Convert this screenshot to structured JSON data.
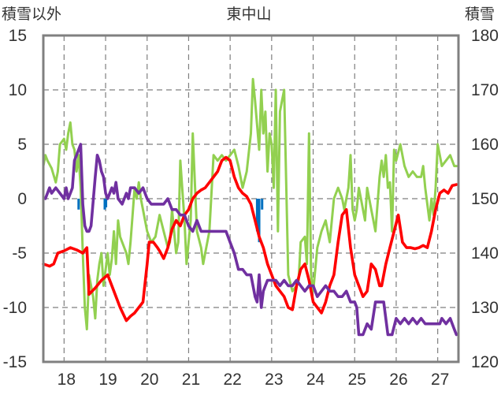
{
  "chart_data": {
    "type": "line",
    "title": "東中山",
    "left_axis_label": "積雪以外",
    "right_axis_label": "積雪",
    "left_ylim": [
      -15,
      15
    ],
    "right_ylim": [
      120,
      180
    ],
    "left_ticks": [
      "15",
      "10",
      "5",
      "0",
      "-5",
      "-10",
      "-15"
    ],
    "right_ticks": [
      "180",
      "170",
      "160",
      "150",
      "140",
      "130",
      "120"
    ],
    "x_categories": [
      "18",
      "19",
      "20",
      "21",
      "22",
      "23",
      "24",
      "25",
      "26",
      "27"
    ],
    "xlim": [
      17.5,
      27.5
    ],
    "grid": true,
    "series": [
      {
        "color": "#ff0000",
        "axis": "left",
        "x": [
          17.5,
          17.65,
          17.75,
          17.85,
          18.0,
          18.15,
          18.3,
          18.45,
          18.55,
          18.6,
          18.75,
          18.9,
          19.05,
          19.2,
          19.35,
          19.5,
          19.6,
          19.7,
          19.8,
          19.9,
          20.0,
          20.05,
          20.15,
          20.25,
          20.3,
          20.4,
          20.5,
          20.6,
          20.7,
          20.8,
          20.9,
          21.0,
          21.1,
          21.2,
          21.3,
          21.4,
          21.5,
          21.6,
          21.7,
          21.8,
          21.9,
          22.0,
          22.1,
          22.2,
          22.3,
          22.4,
          22.5,
          22.6,
          22.7,
          22.8,
          22.9,
          23.0,
          23.1,
          23.2,
          23.3,
          23.4,
          23.5,
          23.6,
          23.7,
          23.8,
          23.9,
          24.0,
          24.1,
          24.2,
          24.3,
          24.4,
          24.5,
          24.6,
          24.7,
          24.8,
          24.9,
          25.0,
          25.1,
          25.2,
          25.3,
          25.4,
          25.5,
          25.6,
          25.65,
          25.75,
          25.85,
          25.95,
          26.05,
          26.15,
          26.25,
          26.35,
          26.45,
          26.55,
          26.65,
          26.75,
          26.85,
          26.95,
          27.05,
          27.15,
          27.25,
          27.35,
          27.45
        ],
        "y": [
          -6.0,
          -6.2,
          -6.0,
          -5.0,
          -4.8,
          -4.5,
          -4.7,
          -5.0,
          -4.5,
          -8.8,
          -8.2,
          -7.5,
          -7.0,
          -8.5,
          -10.0,
          -11.2,
          -10.8,
          -10.5,
          -10.0,
          -9.5,
          -6.0,
          -4.0,
          -4.0,
          -4.5,
          -4.8,
          -5.5,
          -4.5,
          -2.8,
          -2.0,
          -2.5,
          -1.5,
          -1.0,
          0.0,
          0.5,
          0.8,
          1.0,
          1.5,
          2.0,
          2.5,
          3.5,
          3.8,
          3.5,
          2.0,
          1.0,
          0.5,
          0.2,
          -0.5,
          -2.0,
          -3.5,
          -4.5,
          -6.0,
          -7.0,
          -8.0,
          -8.5,
          -9.0,
          -10.0,
          -10.2,
          -8.0,
          -6.5,
          -6.0,
          -7.5,
          -9.5,
          -10.0,
          -10.5,
          -9.5,
          -8.0,
          -7.0,
          -4.0,
          -1.5,
          -1.0,
          -4.5,
          -7.0,
          -8.0,
          -9.0,
          -8.5,
          -6.0,
          -6.5,
          -8.0,
          -8.0,
          -6.0,
          -4.5,
          -3.0,
          -1.5,
          -4.0,
          -4.5,
          -4.5,
          -4.6,
          -4.5,
          -4.3,
          -4.5,
          -3.0,
          -1.0,
          0.5,
          0.8,
          0.5,
          1.2,
          1.3
        ]
      },
      {
        "color": "#92d050",
        "axis": "left",
        "x": [
          17.5,
          17.55,
          17.6,
          17.7,
          17.8,
          17.85,
          17.9,
          18.0,
          18.05,
          18.1,
          18.15,
          18.2,
          18.25,
          18.3,
          18.35,
          18.4,
          18.45,
          18.5,
          18.55,
          18.6,
          18.7,
          18.75,
          18.8,
          18.85,
          18.9,
          18.95,
          19.0,
          19.05,
          19.1,
          19.15,
          19.2,
          19.25,
          19.3,
          19.35,
          19.4,
          19.5,
          19.55,
          19.6,
          19.7,
          19.75,
          19.8,
          19.85,
          19.9,
          20.0,
          20.1,
          20.2,
          20.3,
          20.4,
          20.5,
          20.55,
          20.6,
          20.7,
          20.75,
          20.8,
          20.9,
          20.95,
          21.0,
          21.05,
          21.1,
          21.2,
          21.3,
          21.35,
          21.4,
          21.5,
          21.6,
          21.7,
          21.8,
          21.9,
          22.0,
          22.1,
          22.2,
          22.3,
          22.4,
          22.5,
          22.55,
          22.6,
          22.7,
          22.75,
          22.8,
          22.85,
          22.9,
          22.95,
          23.0,
          23.05,
          23.1,
          23.15,
          23.2,
          23.25,
          23.3,
          23.4,
          23.5,
          23.6,
          23.65,
          23.7,
          23.8,
          23.85,
          23.9,
          23.95,
          24.0,
          24.1,
          24.2,
          24.3,
          24.4,
          24.5,
          24.6,
          24.7,
          24.75,
          24.8,
          24.85,
          24.9,
          24.95,
          25.0,
          25.05,
          25.1,
          25.15,
          25.2,
          25.25,
          25.3,
          25.35,
          25.4,
          25.45,
          25.5,
          25.6,
          25.65,
          25.7,
          25.75,
          25.8,
          25.85,
          25.9,
          25.95,
          26.0,
          26.1,
          26.2,
          26.3,
          26.4,
          26.5,
          26.6,
          26.65,
          26.7,
          26.8,
          26.85,
          26.9,
          26.95,
          27.0,
          27.05,
          27.1,
          27.2,
          27.3,
          27.4,
          27.45
        ],
        "y": [
          3.0,
          4.0,
          3.5,
          2.8,
          1.5,
          2.5,
          5.0,
          5.5,
          4.5,
          6.0,
          7.0,
          5.0,
          4.5,
          2.5,
          4.0,
          1.0,
          -5.0,
          -10.0,
          -12.0,
          -7.0,
          -9.0,
          -11.0,
          -7.5,
          -6.0,
          -5.0,
          -8.0,
          -6.5,
          -5.0,
          -7.0,
          -5.5,
          -3.0,
          -6.0,
          -2.0,
          -3.5,
          -4.0,
          -5.0,
          -6.0,
          -4.0,
          1.0,
          0.0,
          1.5,
          0.0,
          -1.0,
          -3.0,
          -4.0,
          -3.5,
          -1.5,
          -3.0,
          -4.5,
          -4.0,
          -1.0,
          -5.0,
          -4.0,
          3.5,
          -2.0,
          -6.0,
          -4.0,
          -2.0,
          6.0,
          -3.0,
          -4.5,
          -6.0,
          -5.0,
          -3.0,
          4.0,
          3.5,
          4.0,
          3.5,
          4.0,
          4.5,
          3.0,
          1.0,
          2.5,
          6.0,
          11.0,
          9.0,
          4.5,
          10.0,
          6.0,
          8.0,
          2.5,
          6.0,
          5.0,
          1.0,
          10.0,
          -3.0,
          8.0,
          9.0,
          10.0,
          -7.0,
          -8.5,
          -8.0,
          -7.5,
          -4.0,
          -3.5,
          -6.0,
          6.0,
          -7.0,
          -8.5,
          -4.5,
          -3.0,
          -2.0,
          -4.0,
          0.0,
          1.0,
          0.0,
          -1.0,
          0.0,
          1.0,
          4.0,
          -1.0,
          -2.0,
          -1.0,
          1.0,
          0.0,
          -1.0,
          -2.0,
          1.0,
          0.0,
          -1.0,
          -2.0,
          -3.0,
          2.0,
          3.5,
          2.0,
          4.0,
          1.0,
          1.5,
          -3.0,
          4.5,
          3.5,
          5.0,
          3.0,
          2.0,
          2.5,
          2.0,
          2.0,
          3.0,
          1.0,
          -2.0,
          0.0,
          -1.5,
          1.0,
          5.0,
          4.0,
          3.0,
          3.5,
          4.0,
          3.0,
          3.0
        ]
      },
      {
        "color": "#7030a0",
        "axis": "right",
        "x": [
          17.55,
          17.65,
          17.7,
          17.8,
          17.9,
          18.0,
          18.05,
          18.1,
          18.15,
          18.2,
          18.25,
          18.3,
          18.35,
          18.4,
          18.45,
          18.5,
          18.55,
          18.6,
          18.65,
          18.75,
          18.8,
          18.85,
          18.9,
          18.95,
          19.0,
          19.05,
          19.1,
          19.15,
          19.2,
          19.25,
          19.3,
          19.4,
          19.5,
          19.55,
          19.6,
          19.7,
          19.8,
          19.9,
          20.0,
          20.1,
          20.2,
          20.3,
          20.4,
          20.5,
          20.6,
          20.7,
          20.8,
          20.9,
          21.0,
          21.1,
          21.2,
          21.3,
          21.4,
          21.5,
          21.6,
          21.7,
          21.8,
          21.9,
          22.0,
          22.1,
          22.2,
          22.3,
          22.4,
          22.5,
          22.6,
          22.65,
          22.7,
          22.75,
          22.8,
          22.85,
          22.9,
          23.0,
          23.1,
          23.2,
          23.3,
          23.4,
          23.5,
          23.6,
          23.7,
          23.8,
          23.9,
          24.0,
          24.1,
          24.2,
          24.3,
          24.4,
          24.5,
          24.6,
          24.7,
          24.8,
          24.9,
          25.0,
          25.05,
          25.1,
          25.2,
          25.3,
          25.4,
          25.5,
          25.6,
          25.7,
          25.8,
          25.9,
          26.0,
          26.1,
          26.2,
          26.3,
          26.4,
          26.5,
          26.6,
          26.7,
          26.8,
          26.9,
          27.0,
          27.05,
          27.1,
          27.2,
          27.3,
          27.35,
          27.4,
          27.45
        ],
        "y": [
          150,
          152,
          151,
          152,
          151,
          150,
          152,
          150,
          151,
          152,
          157,
          158,
          159,
          160,
          149,
          145,
          144,
          144,
          145,
          154,
          158,
          157,
          155,
          154,
          151,
          150,
          151,
          152,
          151,
          153,
          150,
          149,
          151,
          150,
          152,
          152,
          151,
          152,
          150,
          149,
          149,
          149,
          149,
          150,
          148,
          148,
          147,
          147,
          145,
          144,
          146,
          144,
          144,
          144,
          144,
          144,
          144,
          144,
          142,
          140,
          137,
          137,
          136,
          136,
          132,
          131,
          136,
          130,
          133,
          134,
          135,
          135,
          135,
          134,
          135,
          134,
          134,
          135,
          134,
          133,
          134,
          134,
          132,
          133,
          134,
          133,
          133,
          132,
          132,
          133,
          131,
          131,
          130,
          125,
          125,
          127,
          126,
          131,
          131,
          131,
          125,
          125,
          128,
          127,
          128,
          127,
          128,
          127,
          128,
          127,
          127,
          127,
          127,
          127,
          128,
          127,
          128,
          127,
          126,
          125
        ]
      }
    ],
    "bar_series": [
      {
        "color": "#0070c0",
        "axis": "left",
        "x": [
          18.35,
          18.98,
          19.01,
          22.65,
          22.7,
          22.77
        ],
        "values": [
          -1.0,
          -1.0,
          -0.8,
          -3.0,
          -4.0,
          -1.0
        ]
      }
    ]
  }
}
